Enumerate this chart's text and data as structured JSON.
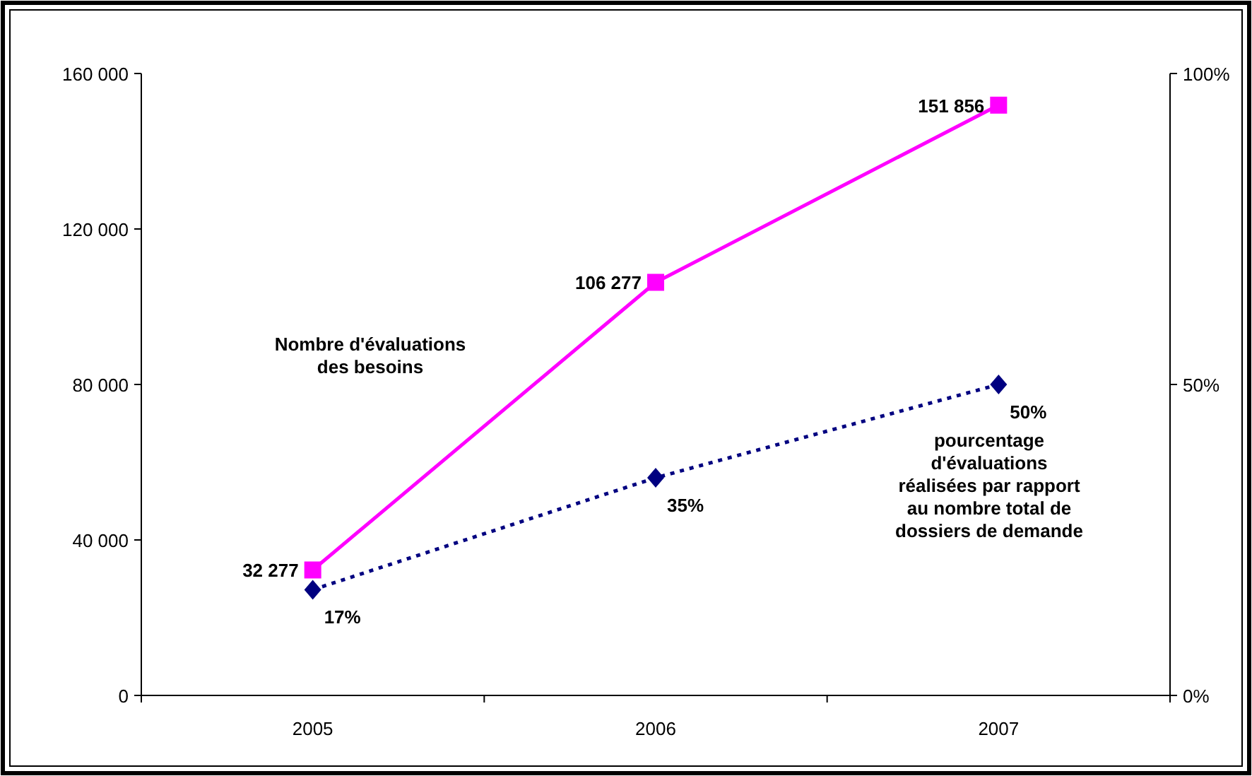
{
  "chart_data": {
    "type": "line",
    "categories": [
      "2005",
      "2006",
      "2007"
    ],
    "series": [
      {
        "name": "Nombre d'évaluations des besoins",
        "color": "#ff00ff",
        "values": [
          32277,
          106277,
          151856
        ],
        "value_labels": [
          "32 277",
          "106 277",
          "151 856"
        ],
        "marker": "square",
        "line_style": "solid"
      },
      {
        "name": "pourcentage d'évaluations réalisées par rapport au nombre total de dossiers de demande",
        "color": "#000080",
        "values": [
          17,
          35,
          50
        ],
        "value_labels": [
          "17%",
          "35%",
          "50%"
        ],
        "marker": "diamond",
        "line_style": "dotted",
        "axis": "y2"
      }
    ],
    "ylim": [
      0,
      160000
    ],
    "yticks": [
      {
        "value": 0,
        "label": "0"
      },
      {
        "value": 40000,
        "label": "40 000"
      },
      {
        "value": 80000,
        "label": "80 000"
      },
      {
        "value": 120000,
        "label": "120 000"
      },
      {
        "value": 160000,
        "label": "160 000"
      }
    ],
    "y2lim": [
      0,
      100
    ],
    "y2ticks": [
      {
        "value": 0,
        "label": "0%"
      },
      {
        "value": 50,
        "label": "50%"
      },
      {
        "value": 100,
        "label": "100%"
      }
    ],
    "grid": false
  }
}
